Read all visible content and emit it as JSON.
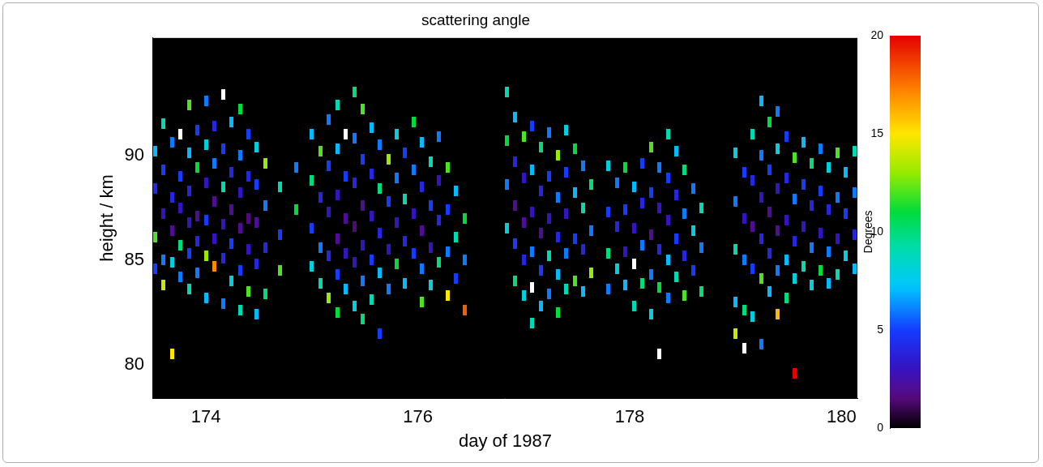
{
  "chart_data": {
    "type": "scatter",
    "title": "scattering angle",
    "x_label": "day of 1987",
    "y_label": "height / km",
    "xlim": [
      173.5,
      180.15
    ],
    "xticks": [
      174,
      176,
      178,
      180
    ],
    "ylim": [
      78.4,
      95.6
    ],
    "yticks": [
      80,
      85,
      90
    ],
    "grid": false,
    "colorbar": {
      "label": "Degrees",
      "range": [
        0,
        20
      ],
      "ticks": [
        0,
        5,
        10,
        15,
        20
      ]
    },
    "cells": [
      [
        173.52,
        90.2,
        7
      ],
      [
        173.52,
        88.4,
        4
      ],
      [
        173.52,
        86.1,
        12
      ],
      [
        173.52,
        84.6,
        5
      ],
      [
        173.6,
        91.5,
        9
      ],
      [
        173.6,
        89.3,
        5
      ],
      [
        173.6,
        87.2,
        3
      ],
      [
        173.6,
        85.0,
        6
      ],
      [
        173.6,
        83.8,
        14
      ],
      [
        173.68,
        80.5,
        15
      ],
      [
        173.68,
        90.6,
        6
      ],
      [
        173.68,
        88.0,
        4
      ],
      [
        173.68,
        86.4,
        2
      ],
      [
        173.68,
        84.9,
        8
      ],
      [
        173.76,
        91.0,
        22
      ],
      [
        173.76,
        89.0,
        5
      ],
      [
        173.76,
        87.5,
        3
      ],
      [
        173.76,
        85.7,
        10
      ],
      [
        173.76,
        84.2,
        6
      ],
      [
        173.84,
        92.4,
        12
      ],
      [
        173.84,
        90.1,
        7
      ],
      [
        173.84,
        88.3,
        4
      ],
      [
        173.84,
        86.8,
        3
      ],
      [
        173.84,
        85.3,
        5
      ],
      [
        173.84,
        83.6,
        9
      ],
      [
        173.92,
        91.2,
        5
      ],
      [
        173.92,
        89.4,
        11
      ],
      [
        173.92,
        87.1,
        2
      ],
      [
        173.92,
        85.9,
        4
      ],
      [
        173.92,
        84.4,
        6
      ],
      [
        174.0,
        92.6,
        6
      ],
      [
        174.0,
        90.5,
        8
      ],
      [
        174.0,
        88.7,
        3
      ],
      [
        174.0,
        86.9,
        5
      ],
      [
        174.0,
        85.2,
        13
      ],
      [
        174.0,
        83.2,
        7
      ],
      [
        174.08,
        91.4,
        4
      ],
      [
        174.08,
        89.6,
        6
      ],
      [
        174.08,
        87.8,
        2
      ],
      [
        174.08,
        86.0,
        3
      ],
      [
        174.08,
        84.7,
        17
      ],
      [
        174.16,
        92.9,
        22
      ],
      [
        174.16,
        90.3,
        5
      ],
      [
        174.16,
        88.5,
        9
      ],
      [
        174.16,
        86.7,
        3
      ],
      [
        174.16,
        85.1,
        4
      ],
      [
        174.16,
        82.9,
        6
      ],
      [
        174.24,
        91.6,
        7
      ],
      [
        174.24,
        89.2,
        4
      ],
      [
        174.24,
        87.4,
        2
      ],
      [
        174.24,
        85.8,
        5
      ],
      [
        174.24,
        84.0,
        8
      ],
      [
        174.32,
        92.2,
        11
      ],
      [
        174.32,
        90.0,
        6
      ],
      [
        174.32,
        88.2,
        3
      ],
      [
        174.32,
        86.5,
        2
      ],
      [
        174.32,
        84.5,
        5
      ],
      [
        174.32,
        82.6,
        9
      ],
      [
        174.4,
        91.0,
        5
      ],
      [
        174.4,
        89.0,
        4
      ],
      [
        174.4,
        87.0,
        1.5
      ],
      [
        174.4,
        85.5,
        3
      ],
      [
        174.4,
        83.5,
        12
      ],
      [
        174.48,
        90.4,
        8
      ],
      [
        174.48,
        88.6,
        5
      ],
      [
        174.48,
        86.8,
        2
      ],
      [
        174.48,
        84.8,
        4
      ],
      [
        174.48,
        82.4,
        7
      ],
      [
        174.56,
        89.6,
        13
      ],
      [
        174.56,
        87.6,
        6
      ],
      [
        174.56,
        85.6,
        4
      ],
      [
        174.56,
        83.4,
        10
      ],
      [
        174.7,
        88.5,
        9
      ],
      [
        174.7,
        86.2,
        5
      ],
      [
        174.7,
        84.5,
        12
      ],
      [
        174.85,
        89.4,
        6
      ],
      [
        174.85,
        87.4,
        11
      ],
      [
        175.0,
        91.0,
        7
      ],
      [
        175.0,
        88.8,
        10
      ],
      [
        175.0,
        86.5,
        5
      ],
      [
        175.0,
        84.7,
        8
      ],
      [
        175.08,
        90.2,
        12
      ],
      [
        175.08,
        88.0,
        4
      ],
      [
        175.08,
        85.6,
        6
      ],
      [
        175.08,
        83.9,
        9
      ],
      [
        175.16,
        91.7,
        6
      ],
      [
        175.16,
        89.5,
        5
      ],
      [
        175.16,
        87.3,
        3
      ],
      [
        175.16,
        85.2,
        4
      ],
      [
        175.16,
        83.2,
        13
      ],
      [
        175.24,
        92.4,
        9
      ],
      [
        175.24,
        90.3,
        7
      ],
      [
        175.24,
        88.1,
        3
      ],
      [
        175.24,
        86.0,
        2
      ],
      [
        175.24,
        84.3,
        5
      ],
      [
        175.24,
        82.5,
        11
      ],
      [
        175.32,
        91.0,
        22
      ],
      [
        175.32,
        89.0,
        5
      ],
      [
        175.32,
        87.0,
        2
      ],
      [
        175.32,
        85.3,
        3
      ],
      [
        175.32,
        83.6,
        7
      ],
      [
        175.4,
        93.0,
        10
      ],
      [
        175.4,
        90.8,
        6
      ],
      [
        175.4,
        88.7,
        4
      ],
      [
        175.4,
        86.6,
        1.5
      ],
      [
        175.4,
        84.9,
        3
      ],
      [
        175.4,
        82.8,
        8
      ],
      [
        175.48,
        92.2,
        12
      ],
      [
        175.48,
        89.8,
        5
      ],
      [
        175.48,
        87.6,
        2
      ],
      [
        175.48,
        85.7,
        3
      ],
      [
        175.48,
        84.0,
        6
      ],
      [
        175.48,
        82.2,
        10
      ],
      [
        175.56,
        91.3,
        7
      ],
      [
        175.56,
        89.1,
        4
      ],
      [
        175.56,
        87.1,
        3
      ],
      [
        175.56,
        85.0,
        5
      ],
      [
        175.56,
        83.1,
        9
      ],
      [
        175.64,
        90.5,
        6
      ],
      [
        175.64,
        88.4,
        10
      ],
      [
        175.64,
        86.3,
        4
      ],
      [
        175.64,
        84.4,
        7
      ],
      [
        175.64,
        81.5,
        5
      ],
      [
        175.72,
        89.8,
        13
      ],
      [
        175.72,
        87.8,
        5
      ],
      [
        175.72,
        85.5,
        3
      ],
      [
        175.72,
        83.6,
        6
      ],
      [
        175.8,
        91.0,
        8
      ],
      [
        175.8,
        88.9,
        6
      ],
      [
        175.8,
        86.8,
        3
      ],
      [
        175.8,
        84.8,
        11
      ],
      [
        175.88,
        90.1,
        5
      ],
      [
        175.88,
        87.9,
        9
      ],
      [
        175.88,
        85.9,
        4
      ],
      [
        175.88,
        83.9,
        7
      ],
      [
        175.96,
        91.6,
        11
      ],
      [
        175.96,
        89.3,
        6
      ],
      [
        175.96,
        87.2,
        3
      ],
      [
        175.96,
        85.3,
        5
      ],
      [
        176.04,
        90.6,
        7
      ],
      [
        176.04,
        88.5,
        4
      ],
      [
        176.04,
        86.4,
        2
      ],
      [
        176.04,
        84.6,
        6
      ],
      [
        176.04,
        83.0,
        12
      ],
      [
        176.12,
        89.7,
        9
      ],
      [
        176.12,
        87.6,
        5
      ],
      [
        176.12,
        85.6,
        3
      ],
      [
        176.12,
        83.8,
        8
      ],
      [
        176.2,
        90.9,
        6
      ],
      [
        176.2,
        88.8,
        3
      ],
      [
        176.2,
        86.9,
        4
      ],
      [
        176.2,
        84.9,
        10
      ],
      [
        176.28,
        89.4,
        12
      ],
      [
        176.28,
        87.4,
        5
      ],
      [
        176.28,
        85.4,
        6
      ],
      [
        176.28,
        83.3,
        15
      ],
      [
        176.36,
        88.3,
        7
      ],
      [
        176.36,
        86.1,
        9
      ],
      [
        176.36,
        84.1,
        5
      ],
      [
        176.44,
        87.0,
        11
      ],
      [
        176.44,
        85.0,
        6
      ],
      [
        176.44,
        82.6,
        18
      ],
      [
        176.84,
        93.0,
        9
      ],
      [
        176.84,
        90.7,
        11
      ],
      [
        176.84,
        88.6,
        6
      ],
      [
        176.84,
        86.5,
        8
      ],
      [
        176.92,
        91.8,
        7
      ],
      [
        176.92,
        89.7,
        4
      ],
      [
        176.92,
        87.6,
        2
      ],
      [
        176.92,
        85.8,
        5
      ],
      [
        176.92,
        84.0,
        10
      ],
      [
        177.0,
        90.9,
        12
      ],
      [
        177.0,
        88.9,
        3
      ],
      [
        177.0,
        86.8,
        2
      ],
      [
        177.0,
        85.0,
        4
      ],
      [
        177.0,
        83.3,
        8
      ],
      [
        177.08,
        91.4,
        5
      ],
      [
        177.08,
        89.3,
        7
      ],
      [
        177.08,
        87.3,
        3
      ],
      [
        177.08,
        85.4,
        6
      ],
      [
        177.08,
        83.7,
        22
      ],
      [
        177.08,
        82.0,
        9
      ],
      [
        177.16,
        90.4,
        10
      ],
      [
        177.16,
        88.3,
        4
      ],
      [
        177.16,
        86.3,
        2
      ],
      [
        177.16,
        84.5,
        5
      ],
      [
        177.16,
        82.8,
        7
      ],
      [
        177.24,
        91.1,
        6
      ],
      [
        177.24,
        89.0,
        5
      ],
      [
        177.24,
        87.0,
        3
      ],
      [
        177.24,
        85.2,
        9
      ],
      [
        177.24,
        83.4,
        6
      ],
      [
        177.32,
        90.0,
        13
      ],
      [
        177.32,
        88.0,
        6
      ],
      [
        177.32,
        86.1,
        4
      ],
      [
        177.32,
        84.3,
        7
      ],
      [
        177.32,
        82.5,
        11
      ],
      [
        177.4,
        91.2,
        8
      ],
      [
        177.4,
        89.2,
        5
      ],
      [
        177.4,
        87.2,
        3
      ],
      [
        177.4,
        85.3,
        6
      ],
      [
        177.4,
        83.6,
        9
      ],
      [
        177.48,
        90.3,
        11
      ],
      [
        177.48,
        88.2,
        7
      ],
      [
        177.48,
        86.0,
        5
      ],
      [
        177.48,
        84.0,
        12
      ],
      [
        177.56,
        89.5,
        6
      ],
      [
        177.56,
        87.5,
        9
      ],
      [
        177.56,
        85.5,
        4
      ],
      [
        177.56,
        83.5,
        7
      ],
      [
        177.64,
        88.6,
        10
      ],
      [
        177.64,
        86.4,
        6
      ],
      [
        177.64,
        84.4,
        13
      ],
      [
        177.8,
        89.5,
        8
      ],
      [
        177.8,
        87.3,
        5
      ],
      [
        177.8,
        85.3,
        10
      ],
      [
        177.8,
        83.6,
        6
      ],
      [
        177.88,
        88.7,
        6
      ],
      [
        177.88,
        86.6,
        4
      ],
      [
        177.88,
        84.6,
        8
      ],
      [
        177.96,
        89.4,
        11
      ],
      [
        177.96,
        87.4,
        5
      ],
      [
        177.96,
        85.4,
        3
      ],
      [
        177.96,
        83.8,
        7
      ],
      [
        178.04,
        88.5,
        7
      ],
      [
        178.04,
        86.5,
        3
      ],
      [
        178.04,
        84.8,
        22
      ],
      [
        178.04,
        82.8,
        9
      ],
      [
        178.12,
        89.6,
        5
      ],
      [
        178.12,
        87.7,
        4
      ],
      [
        178.12,
        85.7,
        6
      ],
      [
        178.12,
        83.9,
        10
      ],
      [
        178.2,
        90.4,
        12
      ],
      [
        178.2,
        88.2,
        5
      ],
      [
        178.2,
        86.2,
        2
      ],
      [
        178.2,
        84.3,
        6
      ],
      [
        178.2,
        82.4,
        8
      ],
      [
        178.28,
        89.4,
        6
      ],
      [
        178.28,
        87.5,
        3
      ],
      [
        178.28,
        85.5,
        4
      ],
      [
        178.28,
        83.7,
        11
      ],
      [
        178.28,
        80.5,
        22
      ],
      [
        178.36,
        91.0,
        9
      ],
      [
        178.36,
        88.9,
        5
      ],
      [
        178.36,
        86.9,
        3
      ],
      [
        178.36,
        85.0,
        7
      ],
      [
        178.36,
        83.2,
        6
      ],
      [
        178.44,
        90.2,
        7
      ],
      [
        178.44,
        88.1,
        4
      ],
      [
        178.44,
        86.0,
        5
      ],
      [
        178.44,
        84.2,
        9
      ],
      [
        178.52,
        89.3,
        10
      ],
      [
        178.52,
        87.2,
        6
      ],
      [
        178.52,
        85.2,
        4
      ],
      [
        178.52,
        83.3,
        12
      ],
      [
        178.6,
        88.4,
        6
      ],
      [
        178.6,
        86.4,
        8
      ],
      [
        178.6,
        84.5,
        5
      ],
      [
        178.68,
        87.5,
        9
      ],
      [
        178.68,
        85.6,
        6
      ],
      [
        178.68,
        83.5,
        10
      ],
      [
        179.0,
        90.1,
        8
      ],
      [
        179.0,
        87.8,
        6
      ],
      [
        179.0,
        85.5,
        9
      ],
      [
        179.0,
        83.0,
        7
      ],
      [
        179.0,
        81.5,
        14
      ],
      [
        179.08,
        89.2,
        5
      ],
      [
        179.08,
        87.0,
        3
      ],
      [
        179.08,
        85.0,
        6
      ],
      [
        179.08,
        82.6,
        10
      ],
      [
        179.08,
        80.8,
        22
      ],
      [
        179.16,
        91.0,
        9
      ],
      [
        179.16,
        88.8,
        4
      ],
      [
        179.16,
        86.6,
        2
      ],
      [
        179.16,
        84.6,
        5
      ],
      [
        179.16,
        82.3,
        8
      ],
      [
        179.24,
        92.6,
        7
      ],
      [
        179.24,
        90.0,
        6
      ],
      [
        179.24,
        88.0,
        3
      ],
      [
        179.24,
        86.0,
        4
      ],
      [
        179.24,
        84.1,
        12
      ],
      [
        179.24,
        81.0,
        6
      ],
      [
        179.32,
        91.6,
        11
      ],
      [
        179.32,
        89.3,
        5
      ],
      [
        179.32,
        87.3,
        2
      ],
      [
        179.32,
        85.3,
        4
      ],
      [
        179.32,
        83.5,
        7
      ],
      [
        179.4,
        92.1,
        6
      ],
      [
        179.4,
        90.3,
        8
      ],
      [
        179.4,
        88.4,
        3
      ],
      [
        179.4,
        86.4,
        2
      ],
      [
        179.4,
        84.5,
        6
      ],
      [
        179.4,
        82.4,
        16
      ],
      [
        179.48,
        90.9,
        5
      ],
      [
        179.48,
        88.9,
        4
      ],
      [
        179.48,
        86.9,
        3
      ],
      [
        179.48,
        85.0,
        7
      ],
      [
        179.48,
        83.2,
        10
      ],
      [
        179.56,
        89.9,
        12
      ],
      [
        179.56,
        87.9,
        6
      ],
      [
        179.56,
        85.9,
        4
      ],
      [
        179.56,
        84.1,
        8
      ],
      [
        179.56,
        79.6,
        20
      ],
      [
        179.64,
        90.6,
        7
      ],
      [
        179.64,
        88.6,
        5
      ],
      [
        179.64,
        86.6,
        3
      ],
      [
        179.64,
        84.7,
        9
      ],
      [
        179.72,
        89.6,
        10
      ],
      [
        179.72,
        87.6,
        4
      ],
      [
        179.72,
        85.6,
        6
      ],
      [
        179.72,
        83.8,
        8
      ],
      [
        179.8,
        90.3,
        6
      ],
      [
        179.8,
        88.3,
        5
      ],
      [
        179.8,
        86.3,
        3
      ],
      [
        179.8,
        84.5,
        11
      ],
      [
        179.88,
        89.4,
        8
      ],
      [
        179.88,
        87.4,
        4
      ],
      [
        179.88,
        85.4,
        6
      ],
      [
        179.88,
        83.9,
        7
      ],
      [
        179.96,
        90.1,
        12
      ],
      [
        179.96,
        88.0,
        6
      ],
      [
        179.96,
        86.0,
        3
      ],
      [
        179.96,
        84.3,
        9
      ],
      [
        180.04,
        89.2,
        7
      ],
      [
        180.04,
        87.2,
        5
      ],
      [
        180.04,
        85.2,
        8
      ],
      [
        180.12,
        90.2,
        9
      ],
      [
        180.12,
        88.2,
        6
      ],
      [
        180.12,
        86.2,
        4
      ],
      [
        180.12,
        84.6,
        7
      ]
    ]
  }
}
